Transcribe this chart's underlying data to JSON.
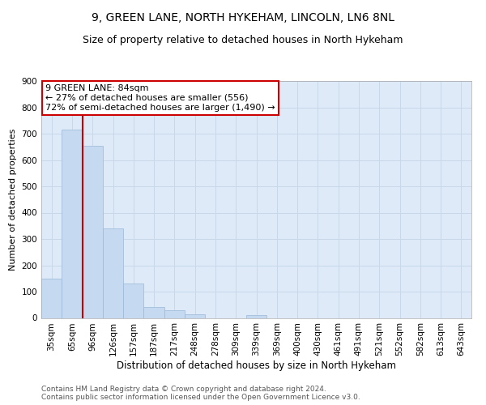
{
  "title": "9, GREEN LANE, NORTH HYKEHAM, LINCOLN, LN6 8NL",
  "subtitle": "Size of property relative to detached houses in North Hykeham",
  "xlabel": "Distribution of detached houses by size in North Hykeham",
  "ylabel": "Number of detached properties",
  "categories": [
    "35sqm",
    "65sqm",
    "96sqm",
    "126sqm",
    "157sqm",
    "187sqm",
    "217sqm",
    "248sqm",
    "278sqm",
    "309sqm",
    "339sqm",
    "369sqm",
    "400sqm",
    "430sqm",
    "461sqm",
    "491sqm",
    "521sqm",
    "552sqm",
    "582sqm",
    "613sqm",
    "643sqm"
  ],
  "values": [
    150,
    715,
    655,
    340,
    130,
    42,
    30,
    15,
    0,
    0,
    10,
    0,
    0,
    0,
    0,
    0,
    0,
    0,
    0,
    0,
    0
  ],
  "bar_color": "#c5d9f0",
  "bar_edge_color": "#9ab8d8",
  "grid_color": "#c8d8e8",
  "background_color": "#deeaf7",
  "annotation_text": "9 GREEN LANE: 84sqm\n← 27% of detached houses are smaller (556)\n72% of semi-detached houses are larger (1,490) →",
  "annotation_box_color": "#ffffff",
  "annotation_box_edge_color": "#cc0000",
  "red_line_color": "#cc0000",
  "ylim": [
    0,
    900
  ],
  "yticks": [
    0,
    100,
    200,
    300,
    400,
    500,
    600,
    700,
    800,
    900
  ],
  "title_fontsize": 10,
  "subtitle_fontsize": 9,
  "xlabel_fontsize": 8.5,
  "ylabel_fontsize": 8,
  "tick_fontsize": 7.5,
  "annotation_fontsize": 8,
  "footer_fontsize": 6.5,
  "footer_text": "Contains HM Land Registry data © Crown copyright and database right 2024.\nContains public sector information licensed under the Open Government Licence v3.0."
}
